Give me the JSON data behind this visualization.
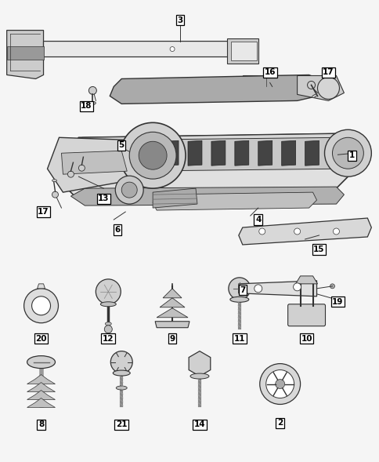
{
  "bg_color": "#f5f5f5",
  "figsize": [
    4.85,
    5.89
  ],
  "dpi": 100,
  "label_fontsize": 7.5,
  "lc": "#333333",
  "fc_light": "#e8e8e8",
  "fc_mid": "#cccccc",
  "fc_dark": "#999999"
}
